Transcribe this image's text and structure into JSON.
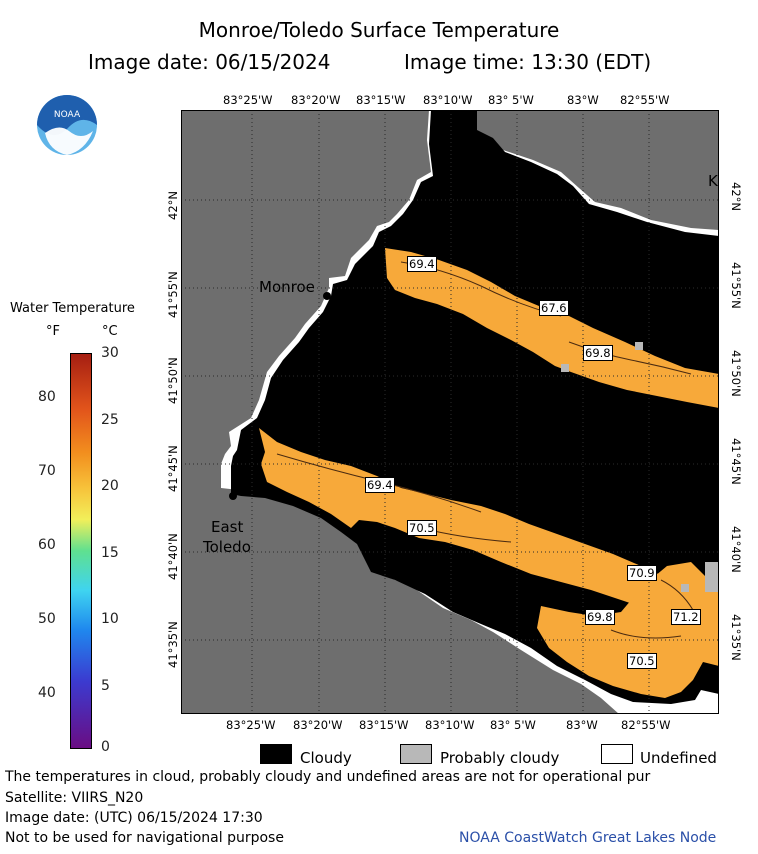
{
  "header": {
    "title": "Monroe/Toledo Surface Temperature",
    "image_date_label": "Image date: 06/15/2024",
    "image_time_label": "Image time: 13:30 (EDT)"
  },
  "logo": {
    "text": "NOAA",
    "icon": "noaa-logo-icon",
    "colors": {
      "blue": "#1f5fae",
      "light": "#5fb4e8",
      "white": "#ffffff"
    }
  },
  "legend_scale": {
    "title": "Water Temperature",
    "unit_f": "°F",
    "unit_c": "°C",
    "fahrenheit_ticks": [
      "80",
      "70",
      "60",
      "50",
      "40"
    ],
    "celsius_ticks": [
      "30",
      "25",
      "20",
      "15",
      "10",
      "5",
      "0"
    ]
  },
  "map": {
    "top_lon_labels": [
      "83°25'W",
      "83°20'W",
      "83°15'W",
      "83°10'W",
      "83° 5'W",
      "83°W",
      "82°55'W"
    ],
    "bottom_lon_labels": [
      "83°25'W",
      "83°20'W",
      "83°15'W",
      "83°10'W",
      "83° 5'W",
      "83°W",
      "82°55'W"
    ],
    "left_lat_labels": [
      "42°N",
      "41°55'N",
      "41°50'N",
      "41°45'N",
      "41°40'N",
      "41°35'N"
    ],
    "right_lat_labels": [
      "42°N",
      "41°55'N",
      "41°50'N",
      "41°45'N",
      "41°40'N",
      "41°35'N"
    ],
    "place_labels": {
      "monroe": "Monroe",
      "east": "East",
      "toledo": "Toledo",
      "k": "K"
    },
    "contour_labels": [
      "69.4",
      "67.6",
      "69.8",
      "69.4",
      "70.5",
      "70.9",
      "71.2",
      "69.8",
      "70.5"
    ],
    "colors": {
      "land": "#6e6e6e",
      "cloud": "#000000",
      "undefined": "#ffffff",
      "warm": "#f7a93a",
      "warm_light": "#fbc25c",
      "probably_cloudy": "#b8b8b8"
    }
  },
  "legend_keys": {
    "cloudy": "Cloudy",
    "probably_cloudy": "Probably cloudy",
    "undefined": "Undefined"
  },
  "footer": {
    "note": "The temperatures in cloud, probably cloudy and undefined areas are not for operational pur",
    "satellite": "Satellite: VIIRS_N20",
    "utc_date": "Image date: (UTC) 06/15/2024  17:30",
    "disclaimer": "Not to be used for navigational purpose",
    "credit": "NOAA CoastWatch Great Lakes Node"
  }
}
